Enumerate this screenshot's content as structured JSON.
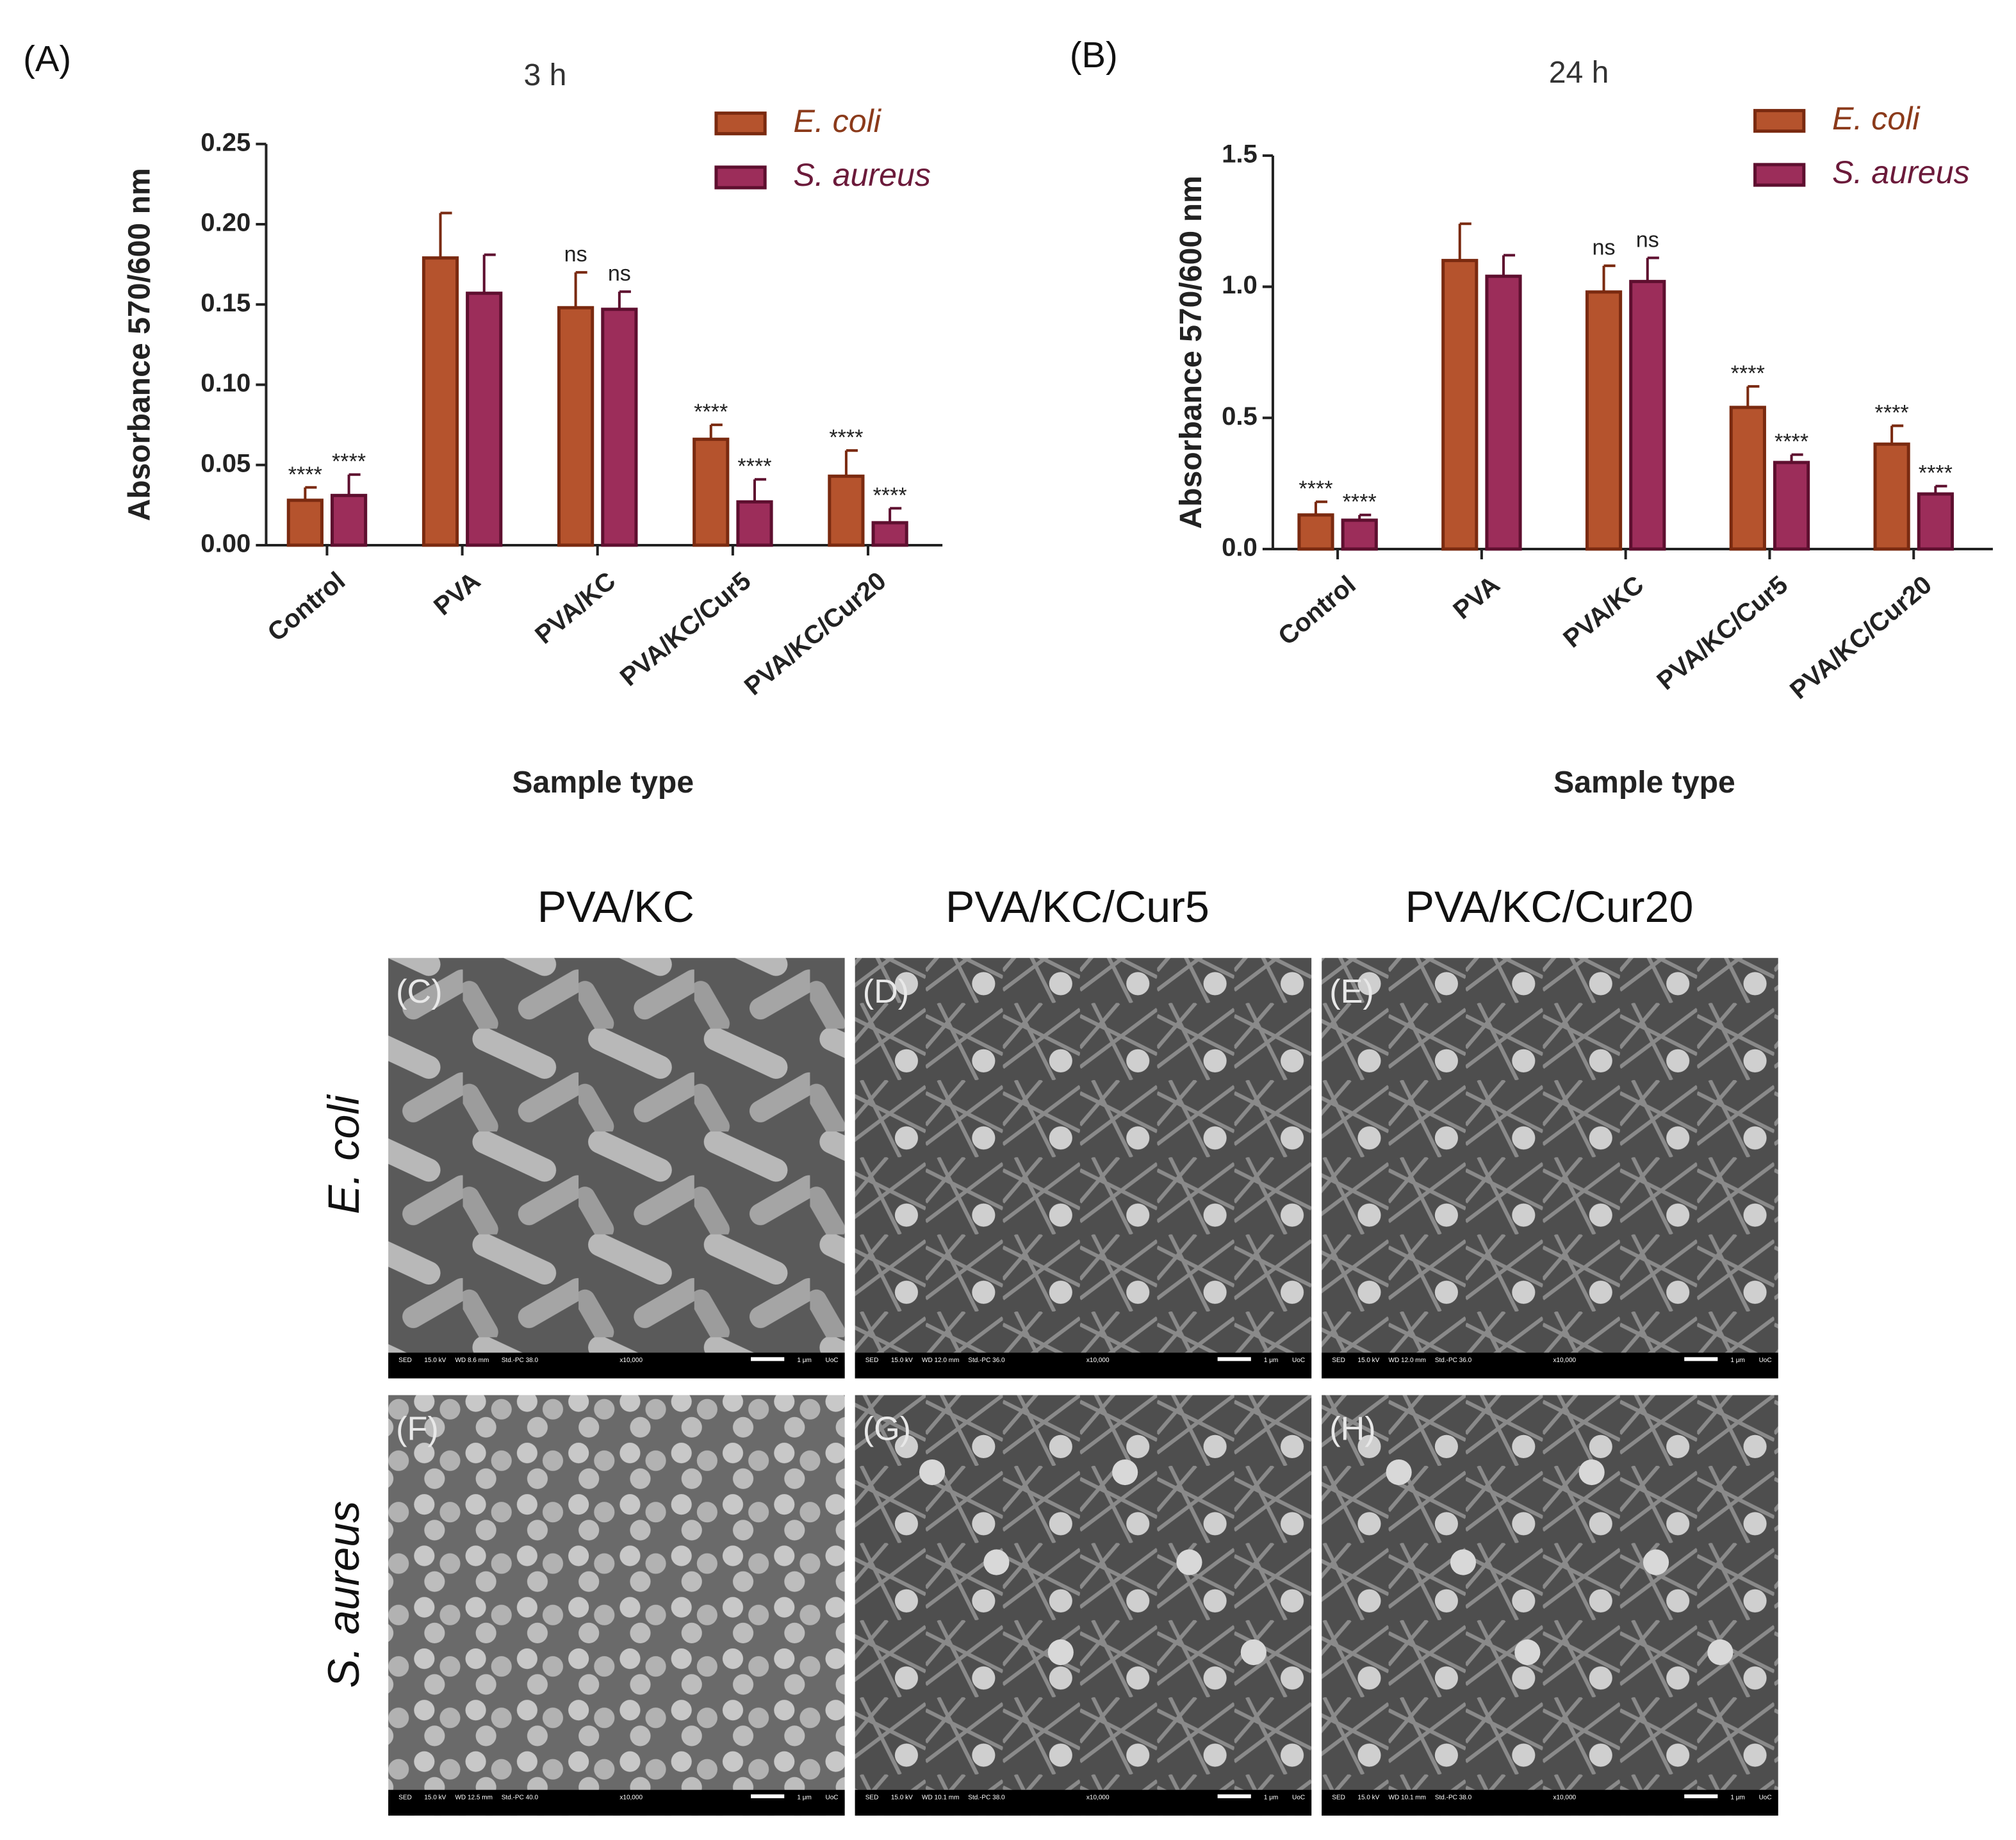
{
  "chart_data": [
    {
      "type": "bar",
      "panel_label": "(A)",
      "title": "3 h",
      "y_label": "Absorbance 570/600 nm",
      "x_label": "Sample type",
      "categories": [
        "Control",
        "PVA",
        "PVA/KC",
        "PVA/KC/Cur5",
        "PVA/KC/Cur20"
      ],
      "series": [
        {
          "name": "E. coli",
          "color": "#b5532d",
          "edge": "#7a2a10",
          "text_color": "#8b3a1a",
          "values": [
            0.028,
            0.179,
            0.148,
            0.066,
            0.043
          ],
          "errors": [
            0.008,
            0.028,
            0.022,
            0.009,
            0.016
          ],
          "significance": [
            "****",
            null,
            "ns",
            "****",
            "****"
          ]
        },
        {
          "name": "S. aureus",
          "color": "#9c2d5a",
          "edge": "#5e0f2f",
          "text_color": "#6b1a3a",
          "values": [
            0.031,
            0.157,
            0.147,
            0.027,
            0.014
          ],
          "errors": [
            0.013,
            0.024,
            0.011,
            0.014,
            0.009
          ],
          "significance": [
            "****",
            null,
            "ns",
            "****",
            "****"
          ]
        }
      ],
      "ylim": [
        0,
        0.25
      ],
      "yticks": [
        {
          "value": 0,
          "label": "0.00"
        },
        0.05,
        {
          "value": 0.1,
          "label": "0.10"
        },
        0.15,
        {
          "value": 0.2,
          "label": "0.20"
        },
        0.25
      ],
      "legend": "upper right"
    },
    {
      "type": "bar",
      "panel_label": "(B)",
      "title": "24 h",
      "y_label": "Absorbance 570/600 nm",
      "x_label": "Sample type",
      "categories": [
        "Control",
        "PVA",
        "PVA/KC",
        "PVA/KC/Cur5",
        "PVA/KC/Cur20"
      ],
      "series": [
        {
          "name": "E. coli",
          "color": "#b5532d",
          "edge": "#7a2a10",
          "text_color": "#8b3a1a",
          "values": [
            0.13,
            1.1,
            0.98,
            0.54,
            0.4
          ],
          "errors": [
            0.05,
            0.14,
            0.1,
            0.08,
            0.07
          ],
          "significance": [
            "****",
            null,
            "ns",
            "****",
            "****"
          ]
        },
        {
          "name": "S. aureus",
          "color": "#9c2d5a",
          "edge": "#5e0f2f",
          "text_color": "#6b1a3a",
          "values": [
            0.11,
            1.04,
            1.02,
            0.33,
            0.21
          ],
          "errors": [
            0.02,
            0.08,
            0.09,
            0.03,
            0.03
          ],
          "significance": [
            "****",
            null,
            "ns",
            "****",
            "****"
          ]
        }
      ],
      "ylim": [
        0,
        1.5
      ],
      "yticks": [
        {
          "value": 0,
          "label": "0.0"
        },
        0.5,
        {
          "value": 1,
          "label": "1.0"
        },
        1.5
      ],
      "legend": "upper right"
    }
  ],
  "micrographs": {
    "columns": [
      "PVA/KC",
      "PVA/KC/Cur5",
      "PVA/KC/Cur20"
    ],
    "rows": [
      "E. coli",
      "S. aureus"
    ],
    "panels": [
      {
        "label": "(C)",
        "info": [
          "SED",
          "15.0 kV",
          "WD 8.6 mm",
          "Std.-PC 38.0",
          "x10,000",
          "1 μm",
          "UoC"
        ]
      },
      {
        "label": "(D)",
        "info": [
          "SED",
          "15.0 kV",
          "WD 12.0 mm",
          "Std.-PC 36.0",
          "x10,000",
          "1 μm",
          "UoC"
        ]
      },
      {
        "label": "(E)",
        "info": [
          "SED",
          "15.0 kV",
          "WD 12.0 mm",
          "Std.-PC 36.0",
          "x10,000",
          "1 μm",
          "UoC"
        ]
      },
      {
        "label": "(F)",
        "info": [
          "SED",
          "15.0 kV",
          "WD 12.5 mm",
          "Std.-PC 40.0",
          "x10,000",
          "1 μm",
          "UoC"
        ]
      },
      {
        "label": "(G)",
        "info": [
          "SED",
          "15.0 kV",
          "WD 10.1 mm",
          "Std.-PC 38.0",
          "x10,000",
          "1 μm",
          "UoC"
        ]
      },
      {
        "label": "(H)",
        "info": [
          "SED",
          "15.0 kV",
          "WD 10.1 mm",
          "Std.-PC 38.0",
          "x10,000",
          "1 μm",
          "UoC"
        ]
      }
    ]
  }
}
